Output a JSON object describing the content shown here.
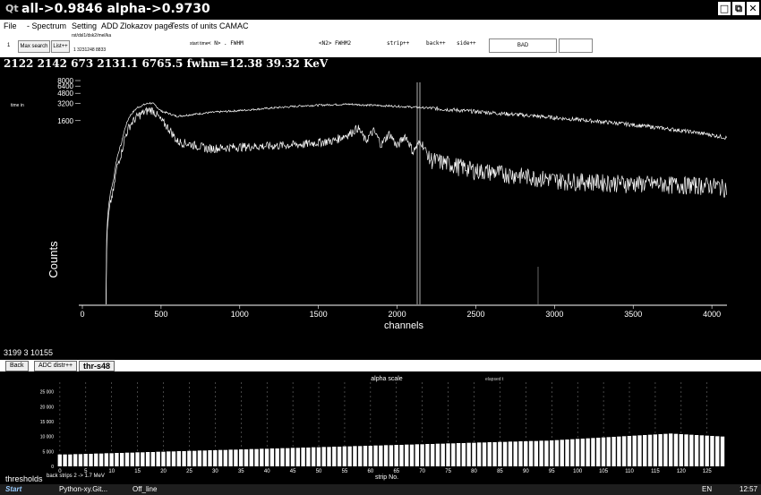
{
  "window": {
    "title": "all->0.9846 alpha->0.9730",
    "buttons": [
      "□",
      "⧉",
      "✕"
    ]
  },
  "menu": [
    "File",
    "- Spectrum",
    "Setting",
    "ADD",
    "Zlokazov page",
    "Tests of units CAMAC"
  ],
  "toolbar": {
    "num": "1",
    "max_search": "Max search",
    "list": "List++",
    "path": "rst/dsl1/dsk2/mel/ka",
    "values": "1   3231248   8833",
    "start_time": "start time",
    "n_label": "< N> . FWHM",
    "n2_label": "<N2>  FWHM2",
    "strip": "strip++",
    "back": "back++",
    "side": "side++",
    "bad": "BAD",
    "empty": ""
  },
  "info_line": "2122   2142    673  2131.1   6765.5  fwhm=12.38    39.32 KeV",
  "top_plot": {
    "time_label": "time in",
    "xlabel": "channels",
    "ylabel": "Counts",
    "y_ticks": [
      "8000",
      "6400",
      "4800",
      "3200",
      "1600"
    ],
    "x_ticks": [
      "0",
      "500",
      "1000",
      "1500",
      "2000",
      "2500",
      "3000",
      "3500",
      "4000"
    ]
  },
  "mid_status": "3199    3 10155",
  "bottom_buttons": {
    "back": "Back",
    "adc": "ADC distr++",
    "thr": "thr-s48"
  },
  "bottom_plot": {
    "title": "alpha scale",
    "elapsed": "elapsed t",
    "xlabel": "strip No.",
    "y_ticks": [
      "25 000",
      "20 000",
      "15 000",
      "10 000",
      "5 000",
      "0"
    ],
    "x_ticks": [
      "0",
      "5",
      "10",
      "15",
      "20",
      "25",
      "30",
      "35",
      "40",
      "45",
      "50",
      "55",
      "60",
      "65",
      "70",
      "75",
      "80",
      "85",
      "90",
      "95",
      "100",
      "105",
      "110",
      "115",
      "120",
      "125"
    ]
  },
  "footer": {
    "thresholds": "thresholds",
    "note": "back strips 2 -> 1.7 MeV"
  },
  "taskbar": {
    "start": "Start",
    "task1": "Python-xy.Git...",
    "task2": "Off_line",
    "lang": "EN",
    "clock": "12:57"
  },
  "chart_data": [
    {
      "type": "line",
      "xlabel": "channels",
      "ylabel": "Counts",
      "xlim": [
        0,
        4096
      ],
      "series": [
        {
          "x": [
            150,
            200,
            250,
            300,
            350,
            400,
            430,
            450,
            500,
            600,
            800,
            1000,
            1200,
            1400,
            1600,
            1700,
            1800,
            2000,
            2200,
            2500,
            3000,
            3500,
            4000,
            4096
          ],
          "y": [
            0,
            150,
            650,
            1900,
            2700,
            3100,
            3250,
            3150,
            2350,
            1900,
            2200,
            2400,
            2650,
            2900,
            3050,
            3100,
            3000,
            2850,
            2650,
            2300,
            1800,
            1350,
            900,
            800
          ]
        },
        {
          "x": [
            150,
            200,
            250,
            300,
            350,
            400,
            430,
            450,
            500,
            600,
            800,
            1000,
            1200,
            1400,
            1600,
            1700,
            1750,
            1800,
            1850,
            1900,
            1950,
            2000,
            2050,
            2100,
            2150,
            2200,
            2300,
            2500,
            3000,
            3500,
            4000,
            4096
          ],
          "y": [
            0,
            100,
            450,
            1300,
            1900,
            2300,
            2500,
            2400,
            1600,
            700,
            520,
            560,
            580,
            620,
            720,
            950,
            1200,
            700,
            1050,
            600,
            950,
            550,
            880,
            450,
            700,
            350,
            300,
            220,
            150,
            130,
            120,
            110
          ]
        }
      ]
    },
    {
      "type": "bar",
      "title": "alpha scale",
      "xlabel": "strip No.",
      "ylim": [
        0,
        27000
      ],
      "values": [
        4000,
        4000,
        4000,
        4100,
        4100,
        4200,
        4200,
        4300,
        4300,
        4400,
        4400,
        4500,
        4500,
        4600,
        4600,
        4700,
        4700,
        4800,
        4800,
        4900,
        4900,
        5000,
        5000,
        5100,
        5100,
        5200,
        5200,
        5300,
        5300,
        5400,
        5400,
        5500,
        5500,
        5600,
        5600,
        5700,
        5700,
        5800,
        5800,
        5900,
        5900,
        6000,
        6000,
        6100,
        6100,
        6200,
        6200,
        6300,
        6300,
        6400,
        6400,
        6500,
        6500,
        6600,
        6600,
        6700,
        6700,
        6800,
        6800,
        6900,
        6900,
        7000,
        7000,
        7100,
        7100,
        7200,
        7200,
        7300,
        7300,
        7400,
        7400,
        7500,
        7500,
        7600,
        7600,
        7700,
        7700,
        7800,
        7800,
        7900,
        7900,
        8000,
        8000,
        8100,
        8100,
        8200,
        8200,
        8300,
        8300,
        8400,
        8400,
        8500,
        8500,
        8600,
        8600,
        8700,
        8800,
        8900,
        9000,
        9100,
        9200,
        9300,
        9400,
        9500,
        9600,
        9700,
        9800,
        9900,
        10000,
        10100,
        10200,
        10300,
        10400,
        10500,
        10600,
        10700,
        10800,
        10900,
        11000,
        10900,
        10800,
        10700,
        10600,
        10500,
        10400,
        10300,
        10200,
        10100,
        10000
      ]
    }
  ]
}
